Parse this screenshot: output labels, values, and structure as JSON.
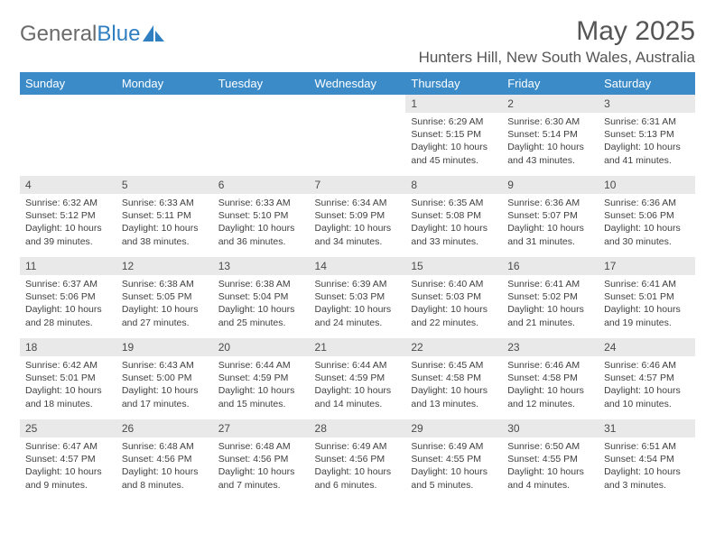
{
  "logo": {
    "text_grey": "General",
    "text_blue": "Blue"
  },
  "title": "May 2025",
  "location": "Hunters Hill, New South Wales, Australia",
  "colors": {
    "header_bg": "#3b8bc9",
    "header_fg": "#ffffff",
    "daynum_bg": "#e9e9e9",
    "body_text": "#3f3f3f",
    "logo_grey": "#6a6a6a",
    "logo_blue": "#2f7fc1",
    "title_color": "#555555"
  },
  "day_headers": [
    "Sunday",
    "Monday",
    "Tuesday",
    "Wednesday",
    "Thursday",
    "Friday",
    "Saturday"
  ],
  "weeks": [
    [
      null,
      null,
      null,
      null,
      {
        "n": "1",
        "sr": "6:29 AM",
        "ss": "5:15 PM",
        "dl": "10 hours and 45 minutes."
      },
      {
        "n": "2",
        "sr": "6:30 AM",
        "ss": "5:14 PM",
        "dl": "10 hours and 43 minutes."
      },
      {
        "n": "3",
        "sr": "6:31 AM",
        "ss": "5:13 PM",
        "dl": "10 hours and 41 minutes."
      }
    ],
    [
      {
        "n": "4",
        "sr": "6:32 AM",
        "ss": "5:12 PM",
        "dl": "10 hours and 39 minutes."
      },
      {
        "n": "5",
        "sr": "6:33 AM",
        "ss": "5:11 PM",
        "dl": "10 hours and 38 minutes."
      },
      {
        "n": "6",
        "sr": "6:33 AM",
        "ss": "5:10 PM",
        "dl": "10 hours and 36 minutes."
      },
      {
        "n": "7",
        "sr": "6:34 AM",
        "ss": "5:09 PM",
        "dl": "10 hours and 34 minutes."
      },
      {
        "n": "8",
        "sr": "6:35 AM",
        "ss": "5:08 PM",
        "dl": "10 hours and 33 minutes."
      },
      {
        "n": "9",
        "sr": "6:36 AM",
        "ss": "5:07 PM",
        "dl": "10 hours and 31 minutes."
      },
      {
        "n": "10",
        "sr": "6:36 AM",
        "ss": "5:06 PM",
        "dl": "10 hours and 30 minutes."
      }
    ],
    [
      {
        "n": "11",
        "sr": "6:37 AM",
        "ss": "5:06 PM",
        "dl": "10 hours and 28 minutes."
      },
      {
        "n": "12",
        "sr": "6:38 AM",
        "ss": "5:05 PM",
        "dl": "10 hours and 27 minutes."
      },
      {
        "n": "13",
        "sr": "6:38 AM",
        "ss": "5:04 PM",
        "dl": "10 hours and 25 minutes."
      },
      {
        "n": "14",
        "sr": "6:39 AM",
        "ss": "5:03 PM",
        "dl": "10 hours and 24 minutes."
      },
      {
        "n": "15",
        "sr": "6:40 AM",
        "ss": "5:03 PM",
        "dl": "10 hours and 22 minutes."
      },
      {
        "n": "16",
        "sr": "6:41 AM",
        "ss": "5:02 PM",
        "dl": "10 hours and 21 minutes."
      },
      {
        "n": "17",
        "sr": "6:41 AM",
        "ss": "5:01 PM",
        "dl": "10 hours and 19 minutes."
      }
    ],
    [
      {
        "n": "18",
        "sr": "6:42 AM",
        "ss": "5:01 PM",
        "dl": "10 hours and 18 minutes."
      },
      {
        "n": "19",
        "sr": "6:43 AM",
        "ss": "5:00 PM",
        "dl": "10 hours and 17 minutes."
      },
      {
        "n": "20",
        "sr": "6:44 AM",
        "ss": "4:59 PM",
        "dl": "10 hours and 15 minutes."
      },
      {
        "n": "21",
        "sr": "6:44 AM",
        "ss": "4:59 PM",
        "dl": "10 hours and 14 minutes."
      },
      {
        "n": "22",
        "sr": "6:45 AM",
        "ss": "4:58 PM",
        "dl": "10 hours and 13 minutes."
      },
      {
        "n": "23",
        "sr": "6:46 AM",
        "ss": "4:58 PM",
        "dl": "10 hours and 12 minutes."
      },
      {
        "n": "24",
        "sr": "6:46 AM",
        "ss": "4:57 PM",
        "dl": "10 hours and 10 minutes."
      }
    ],
    [
      {
        "n": "25",
        "sr": "6:47 AM",
        "ss": "4:57 PM",
        "dl": "10 hours and 9 minutes."
      },
      {
        "n": "26",
        "sr": "6:48 AM",
        "ss": "4:56 PM",
        "dl": "10 hours and 8 minutes."
      },
      {
        "n": "27",
        "sr": "6:48 AM",
        "ss": "4:56 PM",
        "dl": "10 hours and 7 minutes."
      },
      {
        "n": "28",
        "sr": "6:49 AM",
        "ss": "4:56 PM",
        "dl": "10 hours and 6 minutes."
      },
      {
        "n": "29",
        "sr": "6:49 AM",
        "ss": "4:55 PM",
        "dl": "10 hours and 5 minutes."
      },
      {
        "n": "30",
        "sr": "6:50 AM",
        "ss": "4:55 PM",
        "dl": "10 hours and 4 minutes."
      },
      {
        "n": "31",
        "sr": "6:51 AM",
        "ss": "4:54 PM",
        "dl": "10 hours and 3 minutes."
      }
    ]
  ],
  "labels": {
    "sunrise": "Sunrise: ",
    "sunset": "Sunset: ",
    "daylight": "Daylight: "
  }
}
